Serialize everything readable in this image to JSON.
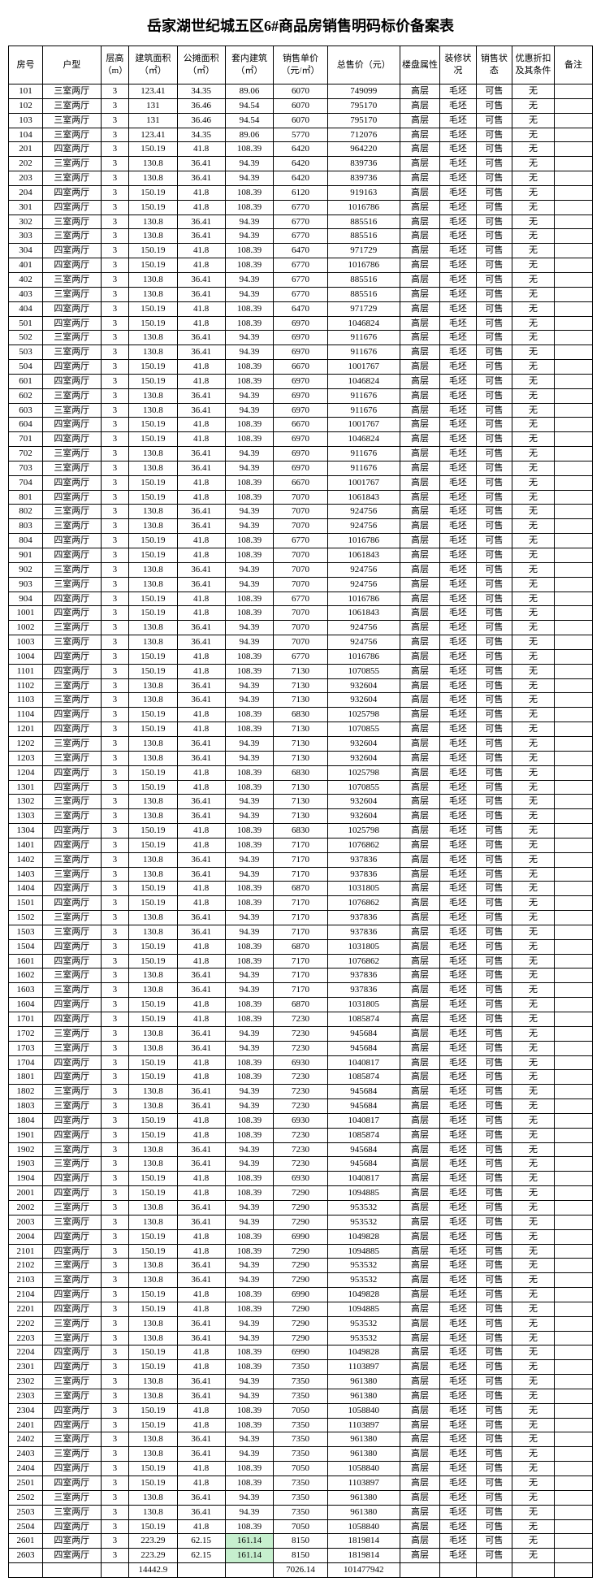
{
  "title": "岳家湖世纪城五区6#商品房销售明码标价备案表",
  "columns": [
    "房号",
    "户型",
    "层高（m）",
    "建筑面积（㎡）",
    "公摊面积（㎡）",
    "套内建筑（㎡）",
    "销售单价（元/㎡）",
    "总售价（元）",
    "楼盘属性",
    "装修状况",
    "销售状态",
    "优惠折扣及其条件",
    "备注"
  ],
  "col_classes": [
    "c0",
    "c1",
    "c2",
    "c3",
    "c4",
    "c5",
    "c6",
    "c7",
    "c8",
    "c9",
    "c10",
    "c11",
    "c12"
  ],
  "defaults": {
    "ch": "3",
    "lp": "高层",
    "zx": "毛坯",
    "xs": "可售",
    "yh": "无",
    "bz": ""
  },
  "totals": {
    "col3": "14442.9",
    "col6": "7026.14",
    "col7": "101477942"
  },
  "highlight_cols": [
    5
  ],
  "rows": [
    {
      "r": "101",
      "h": "三室两厅",
      "a": "123.41",
      "g": "34.35",
      "n": "89.06",
      "p": "6070",
      "t": "749099"
    },
    {
      "r": "102",
      "h": "三室两厅",
      "a": "131",
      "g": "36.46",
      "n": "94.54",
      "p": "6070",
      "t": "795170"
    },
    {
      "r": "103",
      "h": "三室两厅",
      "a": "131",
      "g": "36.46",
      "n": "94.54",
      "p": "6070",
      "t": "795170"
    },
    {
      "r": "104",
      "h": "三室两厅",
      "a": "123.41",
      "g": "34.35",
      "n": "89.06",
      "p": "5770",
      "t": "712076"
    },
    {
      "r": "201",
      "h": "四室两厅",
      "a": "150.19",
      "g": "41.8",
      "n": "108.39",
      "p": "6420",
      "t": "964220"
    },
    {
      "r": "202",
      "h": "三室两厅",
      "a": "130.8",
      "g": "36.41",
      "n": "94.39",
      "p": "6420",
      "t": "839736"
    },
    {
      "r": "203",
      "h": "三室两厅",
      "a": "130.8",
      "g": "36.41",
      "n": "94.39",
      "p": "6420",
      "t": "839736"
    },
    {
      "r": "204",
      "h": "四室两厅",
      "a": "150.19",
      "g": "41.8",
      "n": "108.39",
      "p": "6120",
      "t": "919163"
    },
    {
      "r": "301",
      "h": "四室两厅",
      "a": "150.19",
      "g": "41.8",
      "n": "108.39",
      "p": "6770",
      "t": "1016786"
    },
    {
      "r": "302",
      "h": "三室两厅",
      "a": "130.8",
      "g": "36.41",
      "n": "94.39",
      "p": "6770",
      "t": "885516"
    },
    {
      "r": "303",
      "h": "三室两厅",
      "a": "130.8",
      "g": "36.41",
      "n": "94.39",
      "p": "6770",
      "t": "885516"
    },
    {
      "r": "304",
      "h": "四室两厅",
      "a": "150.19",
      "g": "41.8",
      "n": "108.39",
      "p": "6470",
      "t": "971729"
    },
    {
      "r": "401",
      "h": "四室两厅",
      "a": "150.19",
      "g": "41.8",
      "n": "108.39",
      "p": "6770",
      "t": "1016786"
    },
    {
      "r": "402",
      "h": "三室两厅",
      "a": "130.8",
      "g": "36.41",
      "n": "94.39",
      "p": "6770",
      "t": "885516"
    },
    {
      "r": "403",
      "h": "三室两厅",
      "a": "130.8",
      "g": "36.41",
      "n": "94.39",
      "p": "6770",
      "t": "885516"
    },
    {
      "r": "404",
      "h": "四室两厅",
      "a": "150.19",
      "g": "41.8",
      "n": "108.39",
      "p": "6470",
      "t": "971729"
    },
    {
      "r": "501",
      "h": "四室两厅",
      "a": "150.19",
      "g": "41.8",
      "n": "108.39",
      "p": "6970",
      "t": "1046824"
    },
    {
      "r": "502",
      "h": "三室两厅",
      "a": "130.8",
      "g": "36.41",
      "n": "94.39",
      "p": "6970",
      "t": "911676"
    },
    {
      "r": "503",
      "h": "三室两厅",
      "a": "130.8",
      "g": "36.41",
      "n": "94.39",
      "p": "6970",
      "t": "911676"
    },
    {
      "r": "504",
      "h": "四室两厅",
      "a": "150.19",
      "g": "41.8",
      "n": "108.39",
      "p": "6670",
      "t": "1001767"
    },
    {
      "r": "601",
      "h": "四室两厅",
      "a": "150.19",
      "g": "41.8",
      "n": "108.39",
      "p": "6970",
      "t": "1046824"
    },
    {
      "r": "602",
      "h": "三室两厅",
      "a": "130.8",
      "g": "36.41",
      "n": "94.39",
      "p": "6970",
      "t": "911676"
    },
    {
      "r": "603",
      "h": "三室两厅",
      "a": "130.8",
      "g": "36.41",
      "n": "94.39",
      "p": "6970",
      "t": "911676"
    },
    {
      "r": "604",
      "h": "四室两厅",
      "a": "150.19",
      "g": "41.8",
      "n": "108.39",
      "p": "6670",
      "t": "1001767"
    },
    {
      "r": "701",
      "h": "四室两厅",
      "a": "150.19",
      "g": "41.8",
      "n": "108.39",
      "p": "6970",
      "t": "1046824"
    },
    {
      "r": "702",
      "h": "三室两厅",
      "a": "130.8",
      "g": "36.41",
      "n": "94.39",
      "p": "6970",
      "t": "911676"
    },
    {
      "r": "703",
      "h": "三室两厅",
      "a": "130.8",
      "g": "36.41",
      "n": "94.39",
      "p": "6970",
      "t": "911676"
    },
    {
      "r": "704",
      "h": "四室两厅",
      "a": "150.19",
      "g": "41.8",
      "n": "108.39",
      "p": "6670",
      "t": "1001767"
    },
    {
      "r": "801",
      "h": "四室两厅",
      "a": "150.19",
      "g": "41.8",
      "n": "108.39",
      "p": "7070",
      "t": "1061843"
    },
    {
      "r": "802",
      "h": "三室两厅",
      "a": "130.8",
      "g": "36.41",
      "n": "94.39",
      "p": "7070",
      "t": "924756"
    },
    {
      "r": "803",
      "h": "三室两厅",
      "a": "130.8",
      "g": "36.41",
      "n": "94.39",
      "p": "7070",
      "t": "924756"
    },
    {
      "r": "804",
      "h": "四室两厅",
      "a": "150.19",
      "g": "41.8",
      "n": "108.39",
      "p": "6770",
      "t": "1016786"
    },
    {
      "r": "901",
      "h": "四室两厅",
      "a": "150.19",
      "g": "41.8",
      "n": "108.39",
      "p": "7070",
      "t": "1061843"
    },
    {
      "r": "902",
      "h": "三室两厅",
      "a": "130.8",
      "g": "36.41",
      "n": "94.39",
      "p": "7070",
      "t": "924756"
    },
    {
      "r": "903",
      "h": "三室两厅",
      "a": "130.8",
      "g": "36.41",
      "n": "94.39",
      "p": "7070",
      "t": "924756"
    },
    {
      "r": "904",
      "h": "四室两厅",
      "a": "150.19",
      "g": "41.8",
      "n": "108.39",
      "p": "6770",
      "t": "1016786"
    },
    {
      "r": "1001",
      "h": "四室两厅",
      "a": "150.19",
      "g": "41.8",
      "n": "108.39",
      "p": "7070",
      "t": "1061843"
    },
    {
      "r": "1002",
      "h": "三室两厅",
      "a": "130.8",
      "g": "36.41",
      "n": "94.39",
      "p": "7070",
      "t": "924756"
    },
    {
      "r": "1003",
      "h": "三室两厅",
      "a": "130.8",
      "g": "36.41",
      "n": "94.39",
      "p": "7070",
      "t": "924756"
    },
    {
      "r": "1004",
      "h": "四室两厅",
      "a": "150.19",
      "g": "41.8",
      "n": "108.39",
      "p": "6770",
      "t": "1016786"
    },
    {
      "r": "1101",
      "h": "四室两厅",
      "a": "150.19",
      "g": "41.8",
      "n": "108.39",
      "p": "7130",
      "t": "1070855"
    },
    {
      "r": "1102",
      "h": "三室两厅",
      "a": "130.8",
      "g": "36.41",
      "n": "94.39",
      "p": "7130",
      "t": "932604"
    },
    {
      "r": "1103",
      "h": "三室两厅",
      "a": "130.8",
      "g": "36.41",
      "n": "94.39",
      "p": "7130",
      "t": "932604"
    },
    {
      "r": "1104",
      "h": "四室两厅",
      "a": "150.19",
      "g": "41.8",
      "n": "108.39",
      "p": "6830",
      "t": "1025798"
    },
    {
      "r": "1201",
      "h": "四室两厅",
      "a": "150.19",
      "g": "41.8",
      "n": "108.39",
      "p": "7130",
      "t": "1070855"
    },
    {
      "r": "1202",
      "h": "三室两厅",
      "a": "130.8",
      "g": "36.41",
      "n": "94.39",
      "p": "7130",
      "t": "932604"
    },
    {
      "r": "1203",
      "h": "三室两厅",
      "a": "130.8",
      "g": "36.41",
      "n": "94.39",
      "p": "7130",
      "t": "932604"
    },
    {
      "r": "1204",
      "h": "四室两厅",
      "a": "150.19",
      "g": "41.8",
      "n": "108.39",
      "p": "6830",
      "t": "1025798"
    },
    {
      "r": "1301",
      "h": "四室两厅",
      "a": "150.19",
      "g": "41.8",
      "n": "108.39",
      "p": "7130",
      "t": "1070855"
    },
    {
      "r": "1302",
      "h": "三室两厅",
      "a": "130.8",
      "g": "36.41",
      "n": "94.39",
      "p": "7130",
      "t": "932604"
    },
    {
      "r": "1303",
      "h": "三室两厅",
      "a": "130.8",
      "g": "36.41",
      "n": "94.39",
      "p": "7130",
      "t": "932604"
    },
    {
      "r": "1304",
      "h": "四室两厅",
      "a": "150.19",
      "g": "41.8",
      "n": "108.39",
      "p": "6830",
      "t": "1025798"
    },
    {
      "r": "1401",
      "h": "四室两厅",
      "a": "150.19",
      "g": "41.8",
      "n": "108.39",
      "p": "7170",
      "t": "1076862"
    },
    {
      "r": "1402",
      "h": "三室两厅",
      "a": "130.8",
      "g": "36.41",
      "n": "94.39",
      "p": "7170",
      "t": "937836"
    },
    {
      "r": "1403",
      "h": "三室两厅",
      "a": "130.8",
      "g": "36.41",
      "n": "94.39",
      "p": "7170",
      "t": "937836"
    },
    {
      "r": "1404",
      "h": "四室两厅",
      "a": "150.19",
      "g": "41.8",
      "n": "108.39",
      "p": "6870",
      "t": "1031805"
    },
    {
      "r": "1501",
      "h": "四室两厅",
      "a": "150.19",
      "g": "41.8",
      "n": "108.39",
      "p": "7170",
      "t": "1076862"
    },
    {
      "r": "1502",
      "h": "三室两厅",
      "a": "130.8",
      "g": "36.41",
      "n": "94.39",
      "p": "7170",
      "t": "937836"
    },
    {
      "r": "1503",
      "h": "三室两厅",
      "a": "130.8",
      "g": "36.41",
      "n": "94.39",
      "p": "7170",
      "t": "937836"
    },
    {
      "r": "1504",
      "h": "四室两厅",
      "a": "150.19",
      "g": "41.8",
      "n": "108.39",
      "p": "6870",
      "t": "1031805"
    },
    {
      "r": "1601",
      "h": "四室两厅",
      "a": "150.19",
      "g": "41.8",
      "n": "108.39",
      "p": "7170",
      "t": "1076862"
    },
    {
      "r": "1602",
      "h": "三室两厅",
      "a": "130.8",
      "g": "36.41",
      "n": "94.39",
      "p": "7170",
      "t": "937836"
    },
    {
      "r": "1603",
      "h": "三室两厅",
      "a": "130.8",
      "g": "36.41",
      "n": "94.39",
      "p": "7170",
      "t": "937836"
    },
    {
      "r": "1604",
      "h": "四室两厅",
      "a": "150.19",
      "g": "41.8",
      "n": "108.39",
      "p": "6870",
      "t": "1031805"
    },
    {
      "r": "1701",
      "h": "四室两厅",
      "a": "150.19",
      "g": "41.8",
      "n": "108.39",
      "p": "7230",
      "t": "1085874"
    },
    {
      "r": "1702",
      "h": "三室两厅",
      "a": "130.8",
      "g": "36.41",
      "n": "94.39",
      "p": "7230",
      "t": "945684"
    },
    {
      "r": "1703",
      "h": "三室两厅",
      "a": "130.8",
      "g": "36.41",
      "n": "94.39",
      "p": "7230",
      "t": "945684"
    },
    {
      "r": "1704",
      "h": "四室两厅",
      "a": "150.19",
      "g": "41.8",
      "n": "108.39",
      "p": "6930",
      "t": "1040817"
    },
    {
      "r": "1801",
      "h": "四室两厅",
      "a": "150.19",
      "g": "41.8",
      "n": "108.39",
      "p": "7230",
      "t": "1085874"
    },
    {
      "r": "1802",
      "h": "三室两厅",
      "a": "130.8",
      "g": "36.41",
      "n": "94.39",
      "p": "7230",
      "t": "945684"
    },
    {
      "r": "1803",
      "h": "三室两厅",
      "a": "130.8",
      "g": "36.41",
      "n": "94.39",
      "p": "7230",
      "t": "945684"
    },
    {
      "r": "1804",
      "h": "四室两厅",
      "a": "150.19",
      "g": "41.8",
      "n": "108.39",
      "p": "6930",
      "t": "1040817"
    },
    {
      "r": "1901",
      "h": "四室两厅",
      "a": "150.19",
      "g": "41.8",
      "n": "108.39",
      "p": "7230",
      "t": "1085874"
    },
    {
      "r": "1902",
      "h": "三室两厅",
      "a": "130.8",
      "g": "36.41",
      "n": "94.39",
      "p": "7230",
      "t": "945684"
    },
    {
      "r": "1903",
      "h": "三室两厅",
      "a": "130.8",
      "g": "36.41",
      "n": "94.39",
      "p": "7230",
      "t": "945684"
    },
    {
      "r": "1904",
      "h": "四室两厅",
      "a": "150.19",
      "g": "41.8",
      "n": "108.39",
      "p": "6930",
      "t": "1040817"
    },
    {
      "r": "2001",
      "h": "四室两厅",
      "a": "150.19",
      "g": "41.8",
      "n": "108.39",
      "p": "7290",
      "t": "1094885"
    },
    {
      "r": "2002",
      "h": "三室两厅",
      "a": "130.8",
      "g": "36.41",
      "n": "94.39",
      "p": "7290",
      "t": "953532"
    },
    {
      "r": "2003",
      "h": "三室两厅",
      "a": "130.8",
      "g": "36.41",
      "n": "94.39",
      "p": "7290",
      "t": "953532"
    },
    {
      "r": "2004",
      "h": "四室两厅",
      "a": "150.19",
      "g": "41.8",
      "n": "108.39",
      "p": "6990",
      "t": "1049828"
    },
    {
      "r": "2101",
      "h": "四室两厅",
      "a": "150.19",
      "g": "41.8",
      "n": "108.39",
      "p": "7290",
      "t": "1094885"
    },
    {
      "r": "2102",
      "h": "三室两厅",
      "a": "130.8",
      "g": "36.41",
      "n": "94.39",
      "p": "7290",
      "t": "953532"
    },
    {
      "r": "2103",
      "h": "三室两厅",
      "a": "130.8",
      "g": "36.41",
      "n": "94.39",
      "p": "7290",
      "t": "953532"
    },
    {
      "r": "2104",
      "h": "四室两厅",
      "a": "150.19",
      "g": "41.8",
      "n": "108.39",
      "p": "6990",
      "t": "1049828"
    },
    {
      "r": "2201",
      "h": "四室两厅",
      "a": "150.19",
      "g": "41.8",
      "n": "108.39",
      "p": "7290",
      "t": "1094885"
    },
    {
      "r": "2202",
      "h": "三室两厅",
      "a": "130.8",
      "g": "36.41",
      "n": "94.39",
      "p": "7290",
      "t": "953532"
    },
    {
      "r": "2203",
      "h": "三室两厅",
      "a": "130.8",
      "g": "36.41",
      "n": "94.39",
      "p": "7290",
      "t": "953532"
    },
    {
      "r": "2204",
      "h": "四室两厅",
      "a": "150.19",
      "g": "41.8",
      "n": "108.39",
      "p": "6990",
      "t": "1049828"
    },
    {
      "r": "2301",
      "h": "四室两厅",
      "a": "150.19",
      "g": "41.8",
      "n": "108.39",
      "p": "7350",
      "t": "1103897"
    },
    {
      "r": "2302",
      "h": "三室两厅",
      "a": "130.8",
      "g": "36.41",
      "n": "94.39",
      "p": "7350",
      "t": "961380"
    },
    {
      "r": "2303",
      "h": "三室两厅",
      "a": "130.8",
      "g": "36.41",
      "n": "94.39",
      "p": "7350",
      "t": "961380"
    },
    {
      "r": "2304",
      "h": "四室两厅",
      "a": "150.19",
      "g": "41.8",
      "n": "108.39",
      "p": "7050",
      "t": "1058840"
    },
    {
      "r": "2401",
      "h": "四室两厅",
      "a": "150.19",
      "g": "41.8",
      "n": "108.39",
      "p": "7350",
      "t": "1103897"
    },
    {
      "r": "2402",
      "h": "三室两厅",
      "a": "130.8",
      "g": "36.41",
      "n": "94.39",
      "p": "7350",
      "t": "961380"
    },
    {
      "r": "2403",
      "h": "三室两厅",
      "a": "130.8",
      "g": "36.41",
      "n": "94.39",
      "p": "7350",
      "t": "961380"
    },
    {
      "r": "2404",
      "h": "四室两厅",
      "a": "150.19",
      "g": "41.8",
      "n": "108.39",
      "p": "7050",
      "t": "1058840"
    },
    {
      "r": "2501",
      "h": "四室两厅",
      "a": "150.19",
      "g": "41.8",
      "n": "108.39",
      "p": "7350",
      "t": "1103897"
    },
    {
      "r": "2502",
      "h": "三室两厅",
      "a": "130.8",
      "g": "36.41",
      "n": "94.39",
      "p": "7350",
      "t": "961380"
    },
    {
      "r": "2503",
      "h": "三室两厅",
      "a": "130.8",
      "g": "36.41",
      "n": "94.39",
      "p": "7350",
      "t": "961380"
    },
    {
      "r": "2504",
      "h": "四室两厅",
      "a": "150.19",
      "g": "41.8",
      "n": "108.39",
      "p": "7050",
      "t": "1058840"
    },
    {
      "r": "2601",
      "h": "四室两厅",
      "a": "223.29",
      "g": "62.15",
      "n": "161.14",
      "p": "8150",
      "t": "1819814",
      "hl": true
    },
    {
      "r": "2603",
      "h": "四室两厅",
      "a": "223.29",
      "g": "62.15",
      "n": "161.14",
      "p": "8150",
      "t": "1819814",
      "hl": true
    }
  ]
}
